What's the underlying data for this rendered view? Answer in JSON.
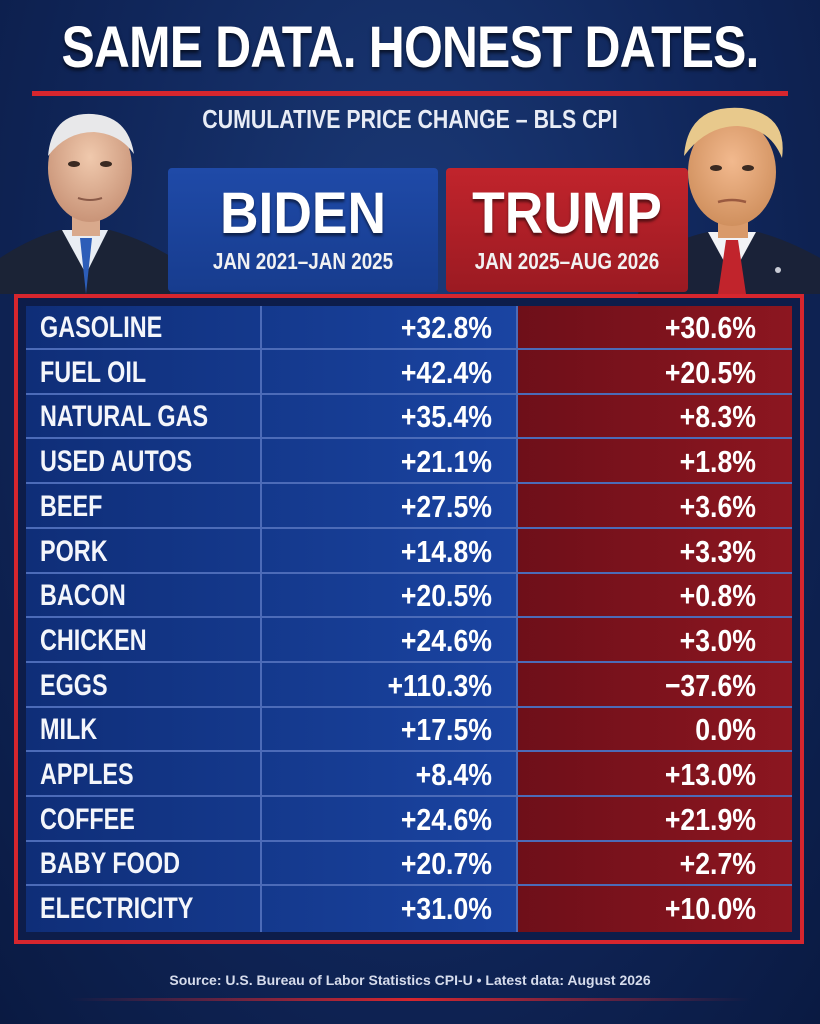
{
  "title": "SAME DATA. HONEST DATES.",
  "subtitle": "CUMULATIVE PRICE CHANGE – BLS CPI",
  "left_panel": {
    "name": "BIDEN",
    "dates": "JAN 2021–JAN 2025"
  },
  "right_panel": {
    "name": "TRUMP",
    "dates": "JAN 2025–AUG 2026"
  },
  "source": "Source: U.S. Bureau of Labor Statistics CPI-U • Latest data: August 2026",
  "colors": {
    "biden": "#1a44a2",
    "trump": "#8c1620",
    "accent": "#d6262e",
    "background": "#10265a"
  },
  "chart_data": {
    "type": "table",
    "title": "SAME DATA. HONEST DATES.",
    "subtitle": "CUMULATIVE PRICE CHANGE – BLS CPI",
    "columns": [
      "BIDEN",
      "TRUMP"
    ],
    "rows": [
      {
        "label": "GASOLINE",
        "biden": "+32.8%",
        "trump": "+30.6%"
      },
      {
        "label": "FUEL OIL",
        "biden": "+42.4%",
        "trump": "+20.5%"
      },
      {
        "label": "NATURAL GAS",
        "biden": "+35.4%",
        "trump": "+8.3%"
      },
      {
        "label": "USED AUTOS",
        "biden": "+21.1%",
        "trump": "+1.8%"
      },
      {
        "label": "BEEF",
        "biden": "+27.5%",
        "trump": "+3.6%"
      },
      {
        "label": "PORK",
        "biden": "+14.8%",
        "trump": "+3.3%"
      },
      {
        "label": "BACON",
        "biden": "+20.5%",
        "trump": "+0.8%"
      },
      {
        "label": "CHICKEN",
        "biden": "+24.6%",
        "trump": "+3.0%"
      },
      {
        "label": "EGGS",
        "biden": "+110.3%",
        "trump": "−37.6%"
      },
      {
        "label": "MILK",
        "biden": "+17.5%",
        "trump": "0.0%"
      },
      {
        "label": "APPLES",
        "biden": "+8.4%",
        "trump": "+13.0%"
      },
      {
        "label": "COFFEE",
        "biden": "+24.6%",
        "trump": "+21.9%"
      },
      {
        "label": "BABY FOOD",
        "biden": "+20.7%",
        "trump": "+2.7%"
      },
      {
        "label": "ELECTRICITY",
        "biden": "+31.0%",
        "trump": "+10.0%"
      }
    ]
  }
}
